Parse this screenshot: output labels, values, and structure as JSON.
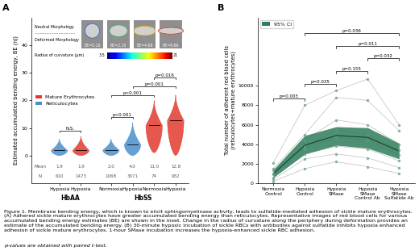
{
  "chart_data": [
    {
      "type": "violin",
      "panel": "A",
      "ylabel": "Estimated accumulated bending energy, BE (nJ)",
      "ylim": [
        -10,
        50
      ],
      "yticks": [
        0,
        10,
        20,
        30,
        40
      ],
      "categories": [
        "Hypoxia",
        "Hypoxia",
        "Normoxia",
        "Hypoxia",
        "Normoxia",
        "Hypoxia"
      ],
      "groups": [
        "HbAA",
        "HbAA",
        "HbSS",
        "HbSS",
        "HbSS",
        "HbSS"
      ],
      "cell_type": [
        "Reticulocytes",
        "Mature Erythrocytes",
        "Reticulocytes",
        "Reticulocytes",
        "Mature Erythrocytes",
        "Mature Erythrocytes"
      ],
      "series": [
        {
          "name": "Mature Erythrocytes",
          "color": "#e2392f"
        },
        {
          "name": "Reticulocytes",
          "color": "#4a8fcb"
        }
      ],
      "mean_label": "Mean",
      "n_label": "N",
      "means": [
        1.9,
        1.9,
        2.0,
        4.0,
        11.0,
        12.8
      ],
      "n": [
        610,
        1473,
        1068,
        3071,
        74,
        932
      ],
      "mins": [
        0,
        0,
        0,
        0,
        1,
        0
      ],
      "maxs": [
        6,
        7,
        6,
        12,
        20,
        22
      ],
      "comparisons": [
        {
          "pair": [
            0,
            1
          ],
          "label": "N.S."
        },
        {
          "pair": [
            2,
            3
          ],
          "label": "p<0.001"
        },
        {
          "pair": [
            2,
            4
          ],
          "label": "p<0.001"
        },
        {
          "pair": [
            3,
            5
          ],
          "label": "p=0.001"
        },
        {
          "pair": [
            4,
            5
          ],
          "label": "p=0.016"
        }
      ],
      "legend": "center left",
      "inset": {
        "top_label": "Neutral Morphology",
        "bottom_label": "Deformed Morphology",
        "images": [
          "BE=0.16",
          "BE=2.15",
          "BE=4.68",
          "BE=9.69"
        ],
        "colorbar_label": "Radius of curvature (μm)",
        "colorbar_range": [
          3.5,
          21
        ]
      }
    },
    {
      "type": "line",
      "panel": "B",
      "ylabel": "Total number of adherent red blood cells\n(reticulocytes+mature erythrocytes)",
      "categories": [
        "Normoxia\nControl",
        "Hypoxia\nControl",
        "Hypoxia\nSMase",
        "Hypoxia\nSMase\nControl Ab",
        "Hypoxia\nSMase\nSulfatide Ab"
      ],
      "ylim": [
        0,
        17000
      ],
      "yticks": [
        0,
        2000,
        4000,
        6000,
        8000,
        10000
      ],
      "mean": [
        1000,
        3900,
        4900,
        4700,
        3300
      ],
      "ci_lower": [
        600,
        3000,
        3900,
        3600,
        2500
      ],
      "ci_upper": [
        1400,
        4900,
        5800,
        5700,
        4100
      ],
      "ci_name": "95% CI",
      "color": "#2f7d5c",
      "subjects": [
        [
          200,
          1500,
          2200,
          1700,
          1000
        ],
        [
          400,
          2500,
          3000,
          2600,
          1600
        ],
        [
          600,
          3000,
          3800,
          3500,
          2300
        ],
        [
          900,
          3500,
          4700,
          4400,
          2900
        ],
        [
          1000,
          3700,
          5500,
          5000,
          3400
        ],
        [
          1300,
          4400,
          6500,
          6000,
          4000
        ],
        [
          1500,
          5000,
          8800,
          8500,
          5400
        ],
        [
          2100,
          8000,
          9500,
          10700,
          6000
        ]
      ],
      "comparisons": [
        {
          "pair": [
            0,
            1
          ],
          "label": "p=0.003"
        },
        {
          "pair": [
            1,
            2
          ],
          "label": "p=0.035"
        },
        {
          "pair": [
            2,
            3
          ],
          "label": "p=0.155"
        },
        {
          "pair": [
            3,
            4
          ],
          "label": "p=0.032"
        },
        {
          "pair": [
            2,
            4
          ],
          "label": "p=0.011"
        },
        {
          "pair": [
            1,
            4
          ],
          "label": "p=0.036"
        }
      ],
      "legend": "upper left"
    }
  ],
  "caption": "Figure 1. Membrane bending energy, which is known to elicit sphingomyelinase activity, leads to sulfatide-mediated adhesion of sickle mature erythrocytes. (A) Adhered sickle mature erythrocytes have greater accumulated bending energy than reticulocytes. Representative images of red blood cells for various accumulated bending energy estimates (BE) are shown in the inset. Change in the radius of curvature along the periphery during deformation provides an estimate of the accumulated bending energy. (B) 30-minute hypoxic incubation of sickle RBCs with antibodies against sulfatide inhibits hypoxia enhanced adhesion of sickle mature erythrocytes. 1-hour SMase incubation increases the hypoxia-enhanced sickle RBC adhesion.",
  "footnote": "p-values are obtained with paired t-test."
}
